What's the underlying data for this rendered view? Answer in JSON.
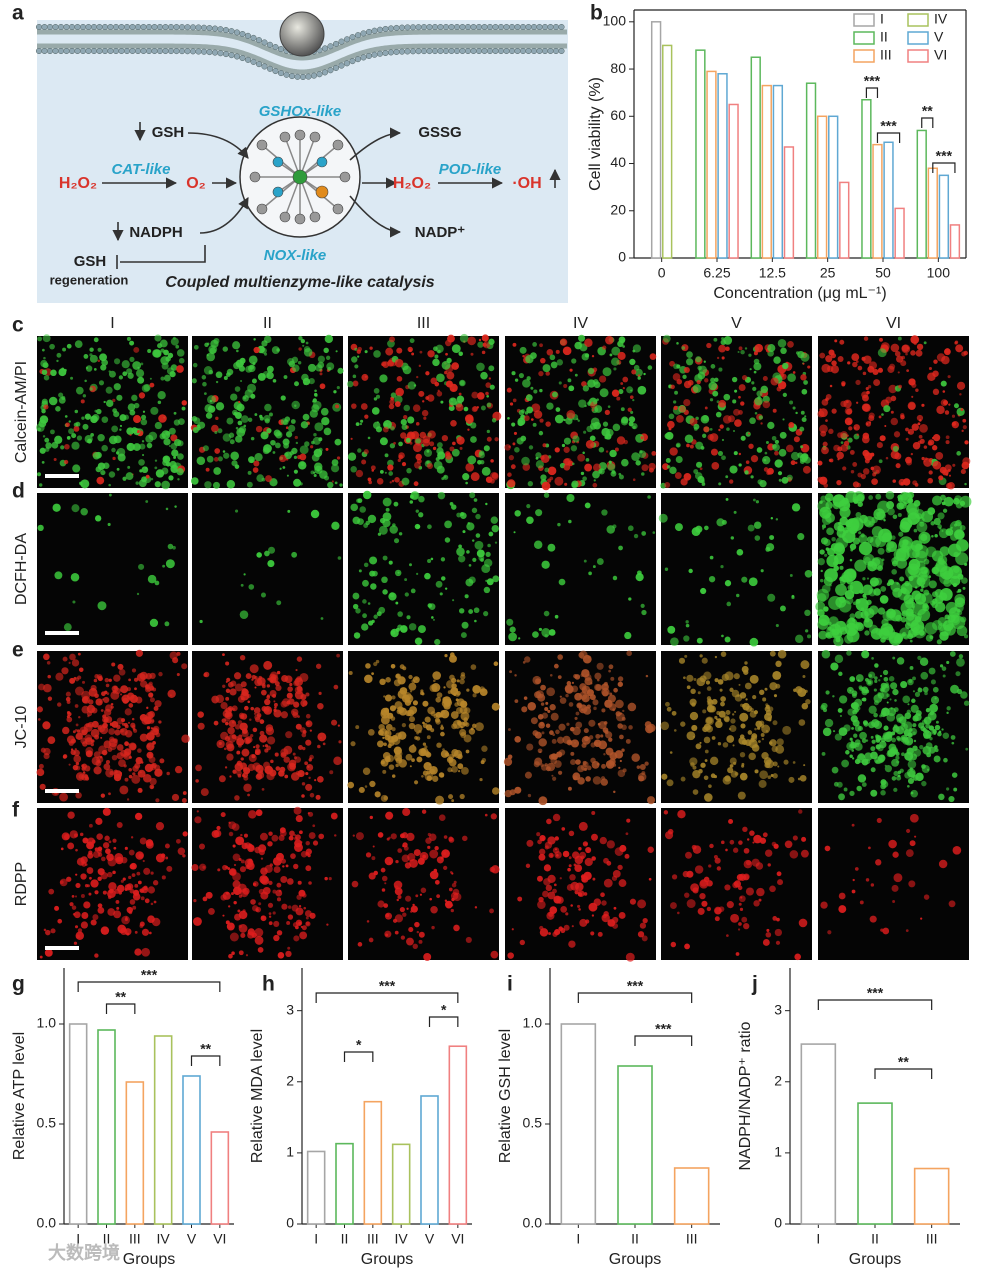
{
  "figure": {
    "panel_labels": [
      "a",
      "b",
      "c",
      "d",
      "e",
      "f",
      "g",
      "h",
      "i",
      "j"
    ],
    "diagram": {
      "gshox": "GSHOx-like",
      "gsh": "GSH",
      "gssg": "GSSG",
      "h2o2_left": "H₂O₂",
      "cat": "CAT-like",
      "o2": "O₂",
      "h2o2_right": "H₂O₂",
      "pod": "POD-like",
      "oh": "·OH",
      "nadph": "NADPH",
      "nox": "NOX-like",
      "nadp": "NADP⁺",
      "gsh_regen": "GSH",
      "regeneration": "regeneration",
      "caption": "Coupled multienzyme-like catalysis"
    },
    "images": {
      "columns": [
        "I",
        "II",
        "III",
        "IV",
        "V",
        "VI"
      ],
      "rows": [
        "Calcein-AM/PI",
        "DCFH-DA",
        "JC-10",
        "RDPP"
      ]
    },
    "watermark": "大数跨境"
  },
  "chart_data": [
    {
      "type": "bar",
      "ylabel": "Cell viability (%)",
      "xlabel": "Concentration (μg mL⁻¹)",
      "categories": [
        "0",
        "6.25",
        "12.5",
        "25",
        "50",
        "100"
      ],
      "series": [
        {
          "name": "I",
          "color": "#a6a6a6",
          "values": [
            100,
            null,
            null,
            null,
            null,
            null
          ]
        },
        {
          "name": "II",
          "color": "#5cb85c",
          "values": [
            null,
            88,
            85,
            74,
            67,
            54
          ]
        },
        {
          "name": "III",
          "color": "#f4a460",
          "values": [
            null,
            79,
            73,
            60,
            48,
            38
          ]
        },
        {
          "name": "IV",
          "color": "#a9c25d",
          "values": [
            90,
            null,
            null,
            null,
            null,
            null
          ]
        },
        {
          "name": "V",
          "color": "#5fa8d3",
          "values": [
            null,
            78,
            73,
            60,
            49,
            35
          ]
        },
        {
          "name": "VI",
          "color": "#f08080",
          "values": [
            null,
            65,
            47,
            32,
            21,
            14
          ]
        }
      ],
      "ylim": [
        0,
        105
      ],
      "yticks": [
        0,
        20,
        40,
        60,
        80,
        100
      ],
      "legend": "top-right",
      "annotations": [
        "***",
        "***",
        "**",
        "***"
      ]
    },
    {
      "type": "bar",
      "ylabel": "Relative ATP level",
      "xlabel": "Groups",
      "categories": [
        "I",
        "II",
        "III",
        "IV",
        "V",
        "VI"
      ],
      "values": [
        1.0,
        0.97,
        0.71,
        0.94,
        0.74,
        0.46
      ],
      "colors": [
        "#a6a6a6",
        "#5cb85c",
        "#f4a460",
        "#a9c25d",
        "#5fa8d3",
        "#f08080"
      ],
      "ylim": [
        0,
        1.28
      ],
      "yticks": [
        {
          "value": 0,
          "label": "0.0"
        },
        0.5,
        {
          "value": 1,
          "label": "1.0"
        }
      ],
      "annotations": [
        "***",
        "**",
        "**"
      ]
    },
    {
      "type": "bar",
      "ylabel": "Relative MDA level",
      "xlabel": "Groups",
      "categories": [
        "I",
        "II",
        "III",
        "IV",
        "V",
        "VI"
      ],
      "values": [
        1.02,
        1.13,
        1.72,
        1.12,
        1.8,
        2.5
      ],
      "colors": [
        "#a6a6a6",
        "#5cb85c",
        "#f4a460",
        "#a9c25d",
        "#5fa8d3",
        "#f08080"
      ],
      "ylim": [
        0,
        3.6
      ],
      "yticks": [
        0,
        1,
        2,
        3
      ],
      "annotations": [
        "***",
        "*",
        "*"
      ]
    },
    {
      "type": "bar",
      "ylabel": "Relative GSH level",
      "xlabel": "Groups",
      "categories": [
        "I",
        "II",
        "III"
      ],
      "values": [
        1.0,
        0.79,
        0.28
      ],
      "colors": [
        "#a6a6a6",
        "#5cb85c",
        "#f4a460"
      ],
      "ylim": [
        0,
        1.28
      ],
      "yticks": [
        {
          "value": 0,
          "label": "0.0"
        },
        0.5,
        {
          "value": 1,
          "label": "1.0"
        }
      ],
      "annotations": [
        "***",
        "***"
      ]
    },
    {
      "type": "bar",
      "ylabel": "NADPH/NADP⁺ ratio",
      "xlabel": "Groups",
      "categories": [
        "I",
        "II",
        "III"
      ],
      "values": [
        2.53,
        1.7,
        0.78
      ],
      "colors": [
        "#a6a6a6",
        "#5cb85c",
        "#f4a460"
      ],
      "ylim": [
        0,
        3.6
      ],
      "yticks": [
        0,
        1,
        2,
        3
      ],
      "annotations": [
        "***",
        "**"
      ]
    }
  ]
}
